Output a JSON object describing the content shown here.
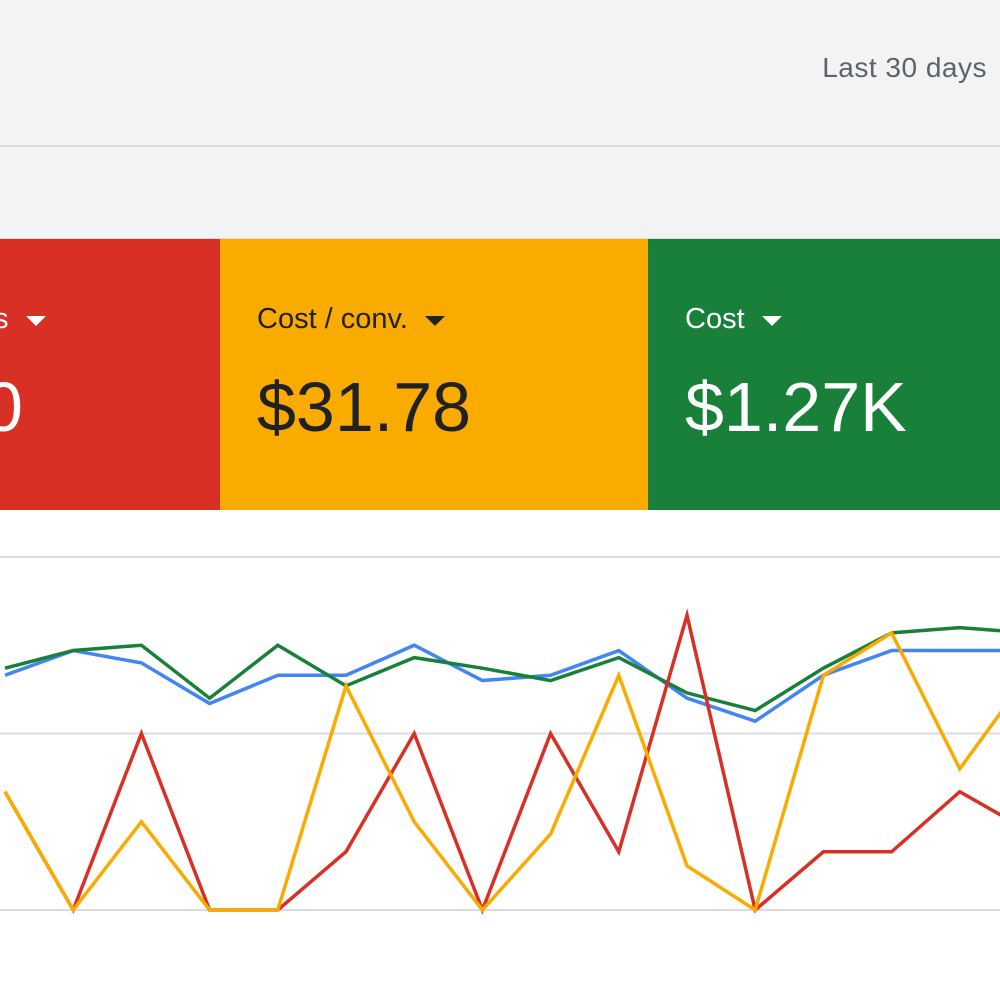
{
  "header": {
    "date_range": "Last 30 days"
  },
  "cards": [
    {
      "label": "s",
      "value": "0",
      "bg": "#d93025",
      "fg": "#ffffff"
    },
    {
      "label": "Cost / conv.",
      "value": "$31.78",
      "bg": "#f9ab00",
      "fg": "#202124"
    },
    {
      "label": "Cost",
      "value": "$1.27K",
      "bg": "#188038",
      "fg": "#ffffff"
    }
  ],
  "chart_data": {
    "type": "line",
    "x": [
      1,
      2,
      3,
      4,
      5,
      6,
      7,
      8,
      9,
      10,
      11,
      12,
      13,
      14,
      15,
      16
    ],
    "ylim": [
      0,
      2
    ],
    "gridlines": [
      0,
      1,
      2
    ],
    "grid": true,
    "series": [
      {
        "color": "#4285f4",
        "values": [
          1.33,
          1.47,
          1.4,
          1.17,
          1.33,
          1.33,
          1.5,
          1.3,
          1.33,
          1.47,
          1.2,
          1.07,
          1.33,
          1.47,
          1.47,
          1.47
        ]
      },
      {
        "color": "#188038",
        "values": [
          1.37,
          1.47,
          1.5,
          1.2,
          1.5,
          1.27,
          1.43,
          1.37,
          1.3,
          1.43,
          1.23,
          1.13,
          1.37,
          1.57,
          1.6,
          1.57
        ]
      },
      {
        "color": "#d93025",
        "values": [
          0.67,
          0.0,
          1.0,
          0.0,
          0.0,
          0.33,
          1.0,
          0.0,
          1.0,
          0.33,
          1.67,
          0.0,
          0.33,
          0.33,
          0.67,
          0.45
        ]
      },
      {
        "color": "#f9ab00",
        "values": [
          0.67,
          0.0,
          0.5,
          0.0,
          0.0,
          1.27,
          0.5,
          0.0,
          0.43,
          1.33,
          0.25,
          0.0,
          1.33,
          1.57,
          0.8,
          1.33
        ]
      }
    ]
  }
}
